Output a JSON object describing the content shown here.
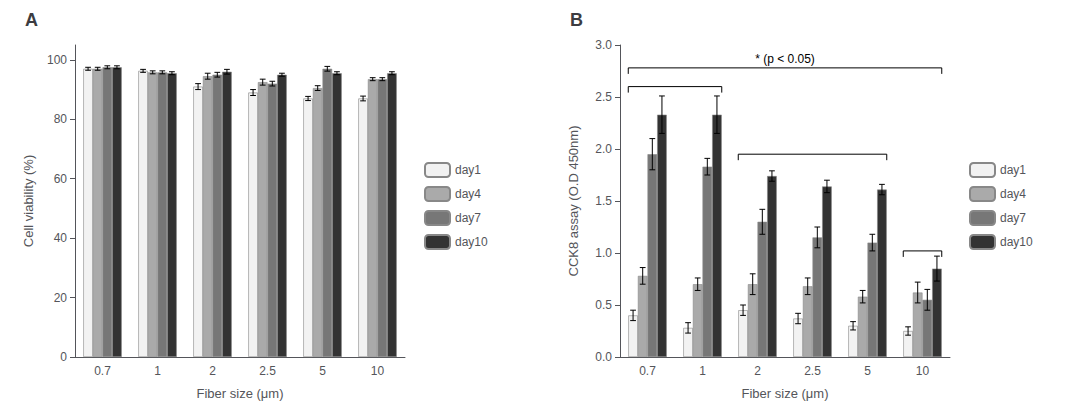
{
  "chart_data": [
    {
      "type": "bar",
      "title": "A",
      "categories": [
        "0.7",
        "1",
        "2",
        "2.5",
        "5",
        "10"
      ],
      "xlabel": "Fiber size (μm)",
      "ylabel": "Cell viability (%)",
      "series": [
        {
          "name": "day1",
          "color": "#f2f2f2",
          "values": [
            97.0,
            96.3,
            91.0,
            89.0,
            87.0,
            87.0
          ],
          "errors": [
            0.5,
            0.5,
            1.0,
            1.0,
            0.7,
            0.8
          ]
        },
        {
          "name": "day4",
          "color": "#aaaaaa",
          "values": [
            97.0,
            95.8,
            94.5,
            92.5,
            90.5,
            93.5
          ],
          "errors": [
            0.5,
            0.5,
            1.0,
            1.0,
            0.8,
            0.5
          ]
        },
        {
          "name": "day7",
          "color": "#777777",
          "values": [
            97.5,
            95.8,
            95.0,
            92.0,
            97.0,
            93.5
          ],
          "errors": [
            0.5,
            0.5,
            0.8,
            0.8,
            0.8,
            0.5
          ]
        },
        {
          "name": "day10",
          "color": "#333333",
          "values": [
            97.5,
            95.5,
            96.0,
            95.0,
            95.5,
            95.5
          ],
          "errors": [
            0.5,
            0.5,
            0.8,
            0.5,
            0.5,
            0.5
          ]
        }
      ],
      "ylim": [
        0,
        105
      ],
      "yticks": [
        0,
        20,
        40,
        60,
        80,
        100
      ],
      "grid": false,
      "legend": "right"
    },
    {
      "type": "bar",
      "title": "B",
      "categories": [
        "0.7",
        "1",
        "2",
        "2.5",
        "5",
        "10"
      ],
      "xlabel": "Fiber size (μm)",
      "ylabel": "CCK8 assay (O.D 450nm)",
      "series": [
        {
          "name": "day1",
          "color": "#f2f2f2",
          "values": [
            0.4,
            0.28,
            0.45,
            0.37,
            0.3,
            0.25
          ],
          "errors": [
            0.05,
            0.05,
            0.05,
            0.05,
            0.04,
            0.04
          ]
        },
        {
          "name": "day4",
          "color": "#aaaaaa",
          "values": [
            0.78,
            0.7,
            0.7,
            0.68,
            0.58,
            0.62
          ],
          "errors": [
            0.08,
            0.06,
            0.1,
            0.08,
            0.06,
            0.1
          ]
        },
        {
          "name": "day7",
          "color": "#777777",
          "values": [
            1.95,
            1.83,
            1.3,
            1.15,
            1.1,
            0.55
          ],
          "errors": [
            0.15,
            0.08,
            0.12,
            0.1,
            0.08,
            0.1
          ]
        },
        {
          "name": "day10",
          "color": "#333333",
          "values": [
            2.33,
            2.33,
            1.74,
            1.64,
            1.61,
            0.85
          ],
          "errors": [
            0.18,
            0.18,
            0.05,
            0.06,
            0.05,
            0.12
          ]
        }
      ],
      "ylim": [
        0,
        3.0
      ],
      "yticks": [
        {
          "value": 0,
          "label": "0.0"
        },
        0.5,
        {
          "value": 1.0,
          "label": "1.0"
        },
        1.5,
        {
          "value": 2.0,
          "label": "2.0"
        },
        2.5,
        {
          "value": 3.0,
          "label": "3.0"
        }
      ],
      "brackets": [
        {
          "from": "0.7",
          "to": "10",
          "y": 2.78,
          "label": "* (p < 0.05)"
        },
        {
          "from": "0.7",
          "to": "1",
          "y": 2.6
        },
        {
          "from": "2",
          "to": "5",
          "y": 1.95
        },
        {
          "from": "10",
          "to": "10",
          "y": 1.02
        }
      ],
      "grid": false,
      "legend": "right"
    }
  ]
}
